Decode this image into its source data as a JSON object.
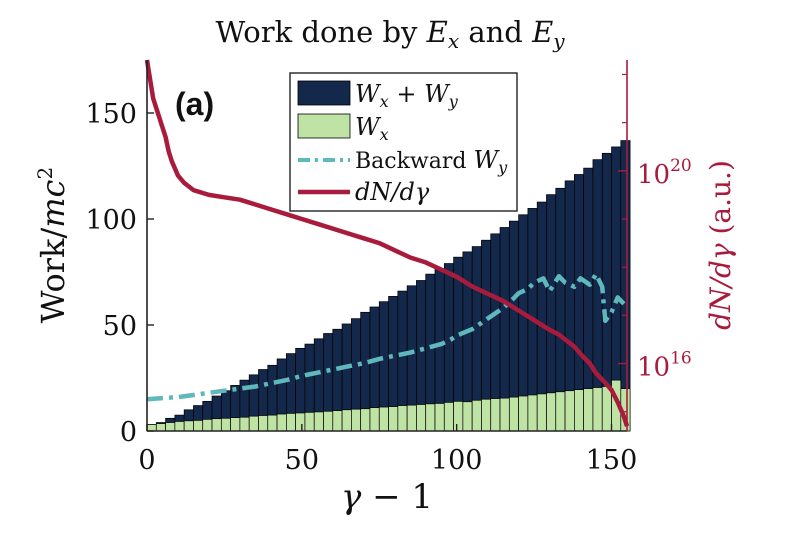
{
  "chart_data": {
    "type": "bar",
    "panel_label": "(a)",
    "title_prefix": "Work done by",
    "title_sym1": "E",
    "title_sub1": "x",
    "title_mid": "and",
    "title_sym2": "E",
    "title_sub2": "y",
    "xlabel_sym": "γ",
    "xlabel_rest": " − 1",
    "ylabel_text": "Work/",
    "ylabel_sym": "mc",
    "ylabel_sup": "2",
    "y2label_sym": "dN/dγ",
    "y2label_rest": " (a.u.)",
    "xlim": [
      0,
      155
    ],
    "ylim": [
      0,
      175
    ],
    "y2_scale": "log",
    "y2_lim_exp": [
      14.6,
      22.3
    ],
    "x_ticks": [
      "0",
      "50",
      "100",
      "150"
    ],
    "y_ticks": [
      "0",
      "50",
      "100",
      "150"
    ],
    "y2_ticks": [
      {
        "base": "10",
        "exp": "16",
        "value_exp": 16
      },
      {
        "base": "10",
        "exp": "20",
        "value_exp": 20
      }
    ],
    "colors": {
      "wxy": "#13284a",
      "wx": "#bfe3a4",
      "backward_wy": "#5fb8bc",
      "dn": "#a91b3c"
    },
    "legend": {
      "placement": "top-center",
      "entries": [
        {
          "sym": "W",
          "sub1": "x",
          "op": " + ",
          "sym2": "W",
          "sub2": "y"
        },
        {
          "sym": "W",
          "sub1": "x"
        },
        {
          "label": "Backward ",
          "sym": "W",
          "sub1": "y"
        },
        {
          "sym": "dN/dγ"
        }
      ]
    },
    "bin_width": 3,
    "x": [
      1.5,
      4.5,
      7.5,
      10.5,
      13.5,
      16.5,
      19.5,
      22.5,
      25.5,
      28.5,
      31.5,
      34.5,
      37.5,
      40.5,
      43.5,
      46.5,
      49.5,
      52.5,
      55.5,
      58.5,
      61.5,
      64.5,
      67.5,
      70.5,
      73.5,
      76.5,
      79.5,
      82.5,
      85.5,
      88.5,
      91.5,
      94.5,
      97.5,
      100.5,
      103.5,
      106.5,
      109.5,
      112.5,
      115.5,
      118.5,
      121.5,
      124.5,
      127.5,
      130.5,
      133.5,
      136.5,
      139.5,
      142.5,
      145.5,
      148.5,
      151.5,
      154.5
    ],
    "series": [
      {
        "name": "Wx + Wy",
        "values": [
          3,
          4,
          6,
          7.5,
          10,
          12,
          14,
          16.5,
          19,
          21.5,
          24,
          26.5,
          29,
          31,
          34,
          36.5,
          39,
          41,
          43.5,
          46,
          48,
          50.5,
          53,
          56,
          58.5,
          61,
          63.5,
          66,
          68.5,
          71,
          74,
          76.5,
          79,
          82,
          84.5,
          87,
          90,
          93,
          96,
          99,
          102,
          105,
          108,
          111.5,
          114.5,
          118,
          121,
          124,
          128,
          131,
          134,
          137
        ]
      },
      {
        "name": "Wx",
        "values": [
          3,
          3.5,
          4,
          4.5,
          4.8,
          5,
          5.5,
          5.8,
          6,
          6.3,
          6.5,
          7,
          7.3,
          7.5,
          8,
          8.3,
          8.5,
          8.8,
          9,
          9.3,
          9.6,
          10,
          10.3,
          10.5,
          11,
          11.3,
          11.5,
          12,
          12.2,
          12.5,
          12.8,
          13,
          13.5,
          14,
          13.8,
          14.5,
          15,
          15.3,
          15.5,
          16,
          16.5,
          17,
          17.5,
          18,
          18.5,
          19,
          19.5,
          20,
          20.5,
          21,
          24,
          20
        ]
      },
      {
        "name": "Backward Wy",
        "style": "dash-dot",
        "x": [
          0,
          5,
          10,
          15,
          20,
          25,
          30,
          35,
          40,
          45,
          50,
          55,
          60,
          65,
          70,
          75,
          80,
          85,
          90,
          95,
          98,
          100,
          105,
          108,
          110,
          113,
          115,
          118,
          120,
          123,
          125,
          128,
          130,
          133,
          135,
          138,
          140,
          143,
          145,
          147,
          148,
          150,
          152,
          154
        ],
        "values": [
          15,
          15.5,
          16,
          17,
          18,
          19,
          20,
          21,
          22.5,
          24,
          26,
          27.5,
          29,
          30.5,
          32,
          34,
          35.5,
          37,
          39,
          41,
          43,
          45,
          48,
          51,
          53,
          56,
          58,
          62,
          65,
          67,
          70,
          72,
          66,
          73,
          70,
          68,
          72,
          69,
          74,
          68,
          52,
          56,
          63,
          60
        ]
      },
      {
        "name": "dN/dγ",
        "axis": "y2",
        "x": [
          0,
          1,
          2,
          3,
          4,
          5,
          6,
          7,
          8,
          10,
          12,
          15,
          20,
          25,
          30,
          35,
          40,
          45,
          50,
          55,
          60,
          65,
          70,
          75,
          80,
          85,
          90,
          95,
          100,
          105,
          110,
          115,
          120,
          125,
          130,
          133,
          135,
          138,
          140,
          143,
          145,
          148,
          150,
          152,
          154,
          155
        ],
        "values_log10": [
          22.5,
          21.9,
          21.5,
          21.3,
          21.1,
          20.9,
          20.7,
          20.4,
          20.2,
          19.9,
          19.75,
          19.6,
          19.5,
          19.45,
          19.4,
          19.3,
          19.2,
          19.1,
          19.0,
          18.9,
          18.8,
          18.7,
          18.6,
          18.5,
          18.35,
          18.2,
          18.1,
          17.95,
          17.8,
          17.6,
          17.45,
          17.3,
          17.1,
          16.9,
          16.7,
          16.6,
          16.5,
          16.35,
          16.2,
          16.0,
          15.8,
          15.6,
          15.45,
          15.2,
          14.9,
          14.7
        ]
      }
    ]
  }
}
